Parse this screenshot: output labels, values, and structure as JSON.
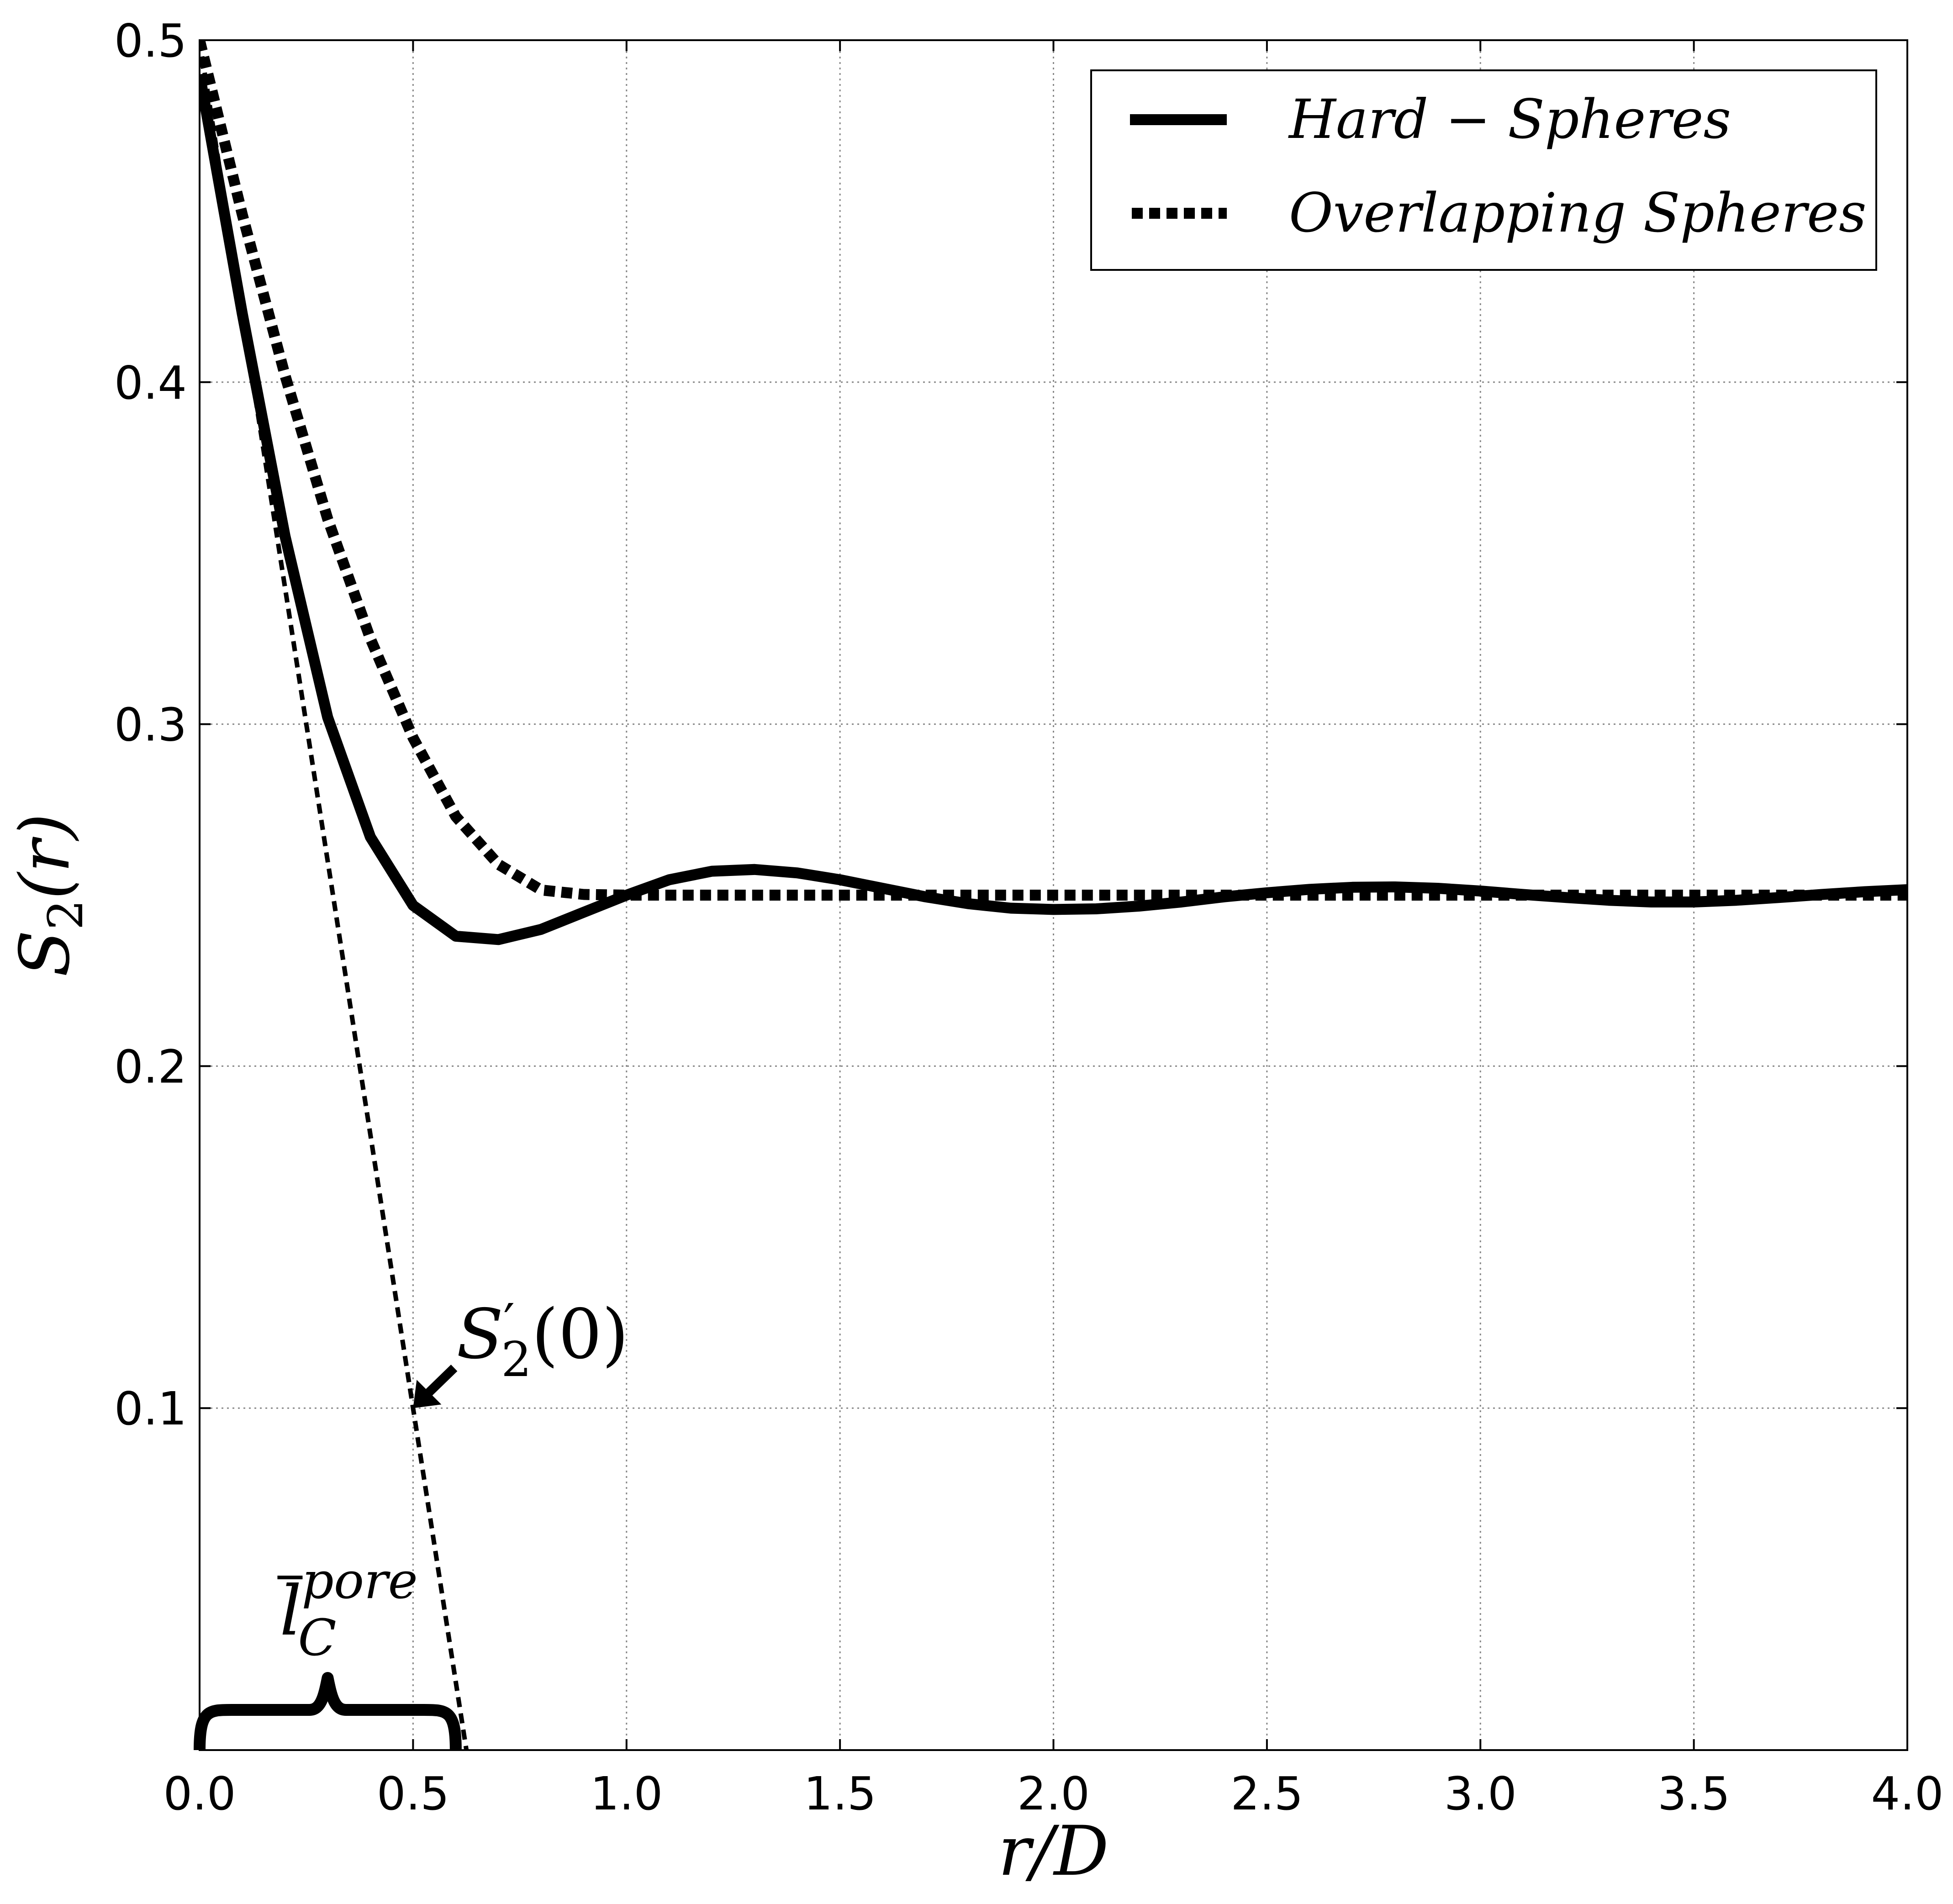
{
  "chart_data": {
    "type": "line",
    "title": "",
    "xlabel": "r/D",
    "ylabel": "S2(r)",
    "xlim": [
      0.0,
      4.0
    ],
    "ylim": [
      0.0,
      0.5
    ],
    "grid": true,
    "legend_position": "top-right",
    "x_ticks": [
      "0.0",
      "0.5",
      "1.0",
      "1.5",
      "2.0",
      "2.5",
      "3.0",
      "3.5",
      "4.0"
    ],
    "y_ticks": [
      "0.1",
      "0.2",
      "0.3",
      "0.4",
      "0.5"
    ],
    "series": [
      {
        "name": "Hard − Spheres",
        "style": "solid",
        "color": "#000000",
        "x": [
          0.0,
          0.1,
          0.2,
          0.3,
          0.4,
          0.5,
          0.6,
          0.7,
          0.8,
          0.9,
          1.0,
          1.1,
          1.2,
          1.3,
          1.4,
          1.5,
          1.6,
          1.7,
          1.8,
          1.9,
          2.0,
          2.1,
          2.2,
          2.3,
          2.4,
          2.5,
          2.6,
          2.7,
          2.8,
          2.9,
          3.0,
          3.1,
          3.2,
          3.3,
          3.4,
          3.5,
          3.6,
          3.7,
          3.8,
          3.9,
          4.0
        ],
        "y": [
          0.49,
          0.42,
          0.355,
          0.302,
          0.267,
          0.247,
          0.238,
          0.237,
          0.24,
          0.245,
          0.25,
          0.2545,
          0.257,
          0.2575,
          0.2565,
          0.2545,
          0.252,
          0.2495,
          0.2475,
          0.2462,
          0.2458,
          0.246,
          0.2468,
          0.248,
          0.2495,
          0.2507,
          0.2517,
          0.2523,
          0.2524,
          0.252,
          0.2512,
          0.2502,
          0.2493,
          0.2485,
          0.248,
          0.248,
          0.2485,
          0.2493,
          0.2502,
          0.251,
          0.2516
        ]
      },
      {
        "name": "Overlapping Spheres",
        "style": "dotted",
        "color": "#000000",
        "x": [
          0.0,
          0.1,
          0.2,
          0.3,
          0.4,
          0.5,
          0.6,
          0.7,
          0.8,
          0.9,
          1.0,
          1.5,
          2.0,
          2.5,
          3.0,
          3.5,
          4.0
        ],
        "y": [
          0.5,
          0.449,
          0.402,
          0.36,
          0.325,
          0.296,
          0.273,
          0.259,
          0.2515,
          0.2502,
          0.25,
          0.25,
          0.25,
          0.25,
          0.25,
          0.25,
          0.25
        ]
      },
      {
        "name": "",
        "style": "dashed",
        "color": "#000000",
        "x": [
          0.0,
          0.625
        ],
        "y": [
          0.5,
          0.0
        ]
      }
    ],
    "annotations": [
      {
        "label": "S'2(0)",
        "main": "S",
        "prime": "′",
        "sub": "2",
        "arg": "(0)",
        "arrow_to": [
          0.5,
          0.1
        ]
      },
      {
        "label": "l̄C pore",
        "main": "l",
        "sub": "C",
        "sup": "pore",
        "brace_x": [
          0.0,
          0.6
        ]
      }
    ]
  }
}
